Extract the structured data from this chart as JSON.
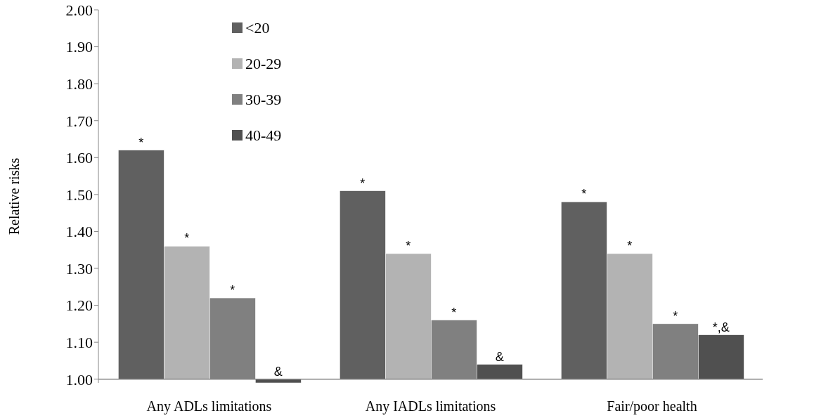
{
  "chart_data": {
    "type": "bar",
    "ylabel": "Relative risks",
    "categories": [
      "Any ADLs limitations",
      "Any IADLs limitations",
      "Fair/poor health"
    ],
    "series": [
      {
        "name": "<20",
        "color": "#606060",
        "base": [
          1.0,
          1.0,
          1.0
        ],
        "values": [
          0.62,
          0.51,
          0.48
        ],
        "value_labels": [
          "*",
          "*",
          "*"
        ]
      },
      {
        "name": "20-29",
        "color": "#b3b3b3",
        "base": [
          1.0,
          1.0,
          1.0
        ],
        "values": [
          0.36,
          0.34,
          0.34
        ],
        "value_labels": [
          "*",
          "*",
          "*"
        ]
      },
      {
        "name": "30-39",
        "color": "#808080",
        "base": [
          1.0,
          1.0,
          1.0
        ],
        "values": [
          0.22,
          0.16,
          0.15
        ],
        "value_labels": [
          "*",
          "*",
          "*"
        ]
      },
      {
        "name": "40-49",
        "color": "#505050",
        "base": [
          1.0,
          1.0,
          1.0
        ],
        "values": [
          -0.01,
          0.04,
          0.12
        ],
        "value_labels": [
          "&",
          "&",
          "*,&"
        ]
      }
    ],
    "ylim": [
      0.99,
      2.0
    ],
    "yticks": [
      {
        "value": 1.0,
        "label": "1.00"
      },
      {
        "value": 1.1,
        "label": "1.10"
      },
      {
        "value": 1.2,
        "label": "1.20"
      },
      {
        "value": 1.3,
        "label": "1.30"
      },
      {
        "value": 1.4,
        "label": "1.40"
      },
      {
        "value": 1.5,
        "label": "1.50"
      },
      {
        "value": 1.6,
        "label": "1.60"
      },
      {
        "value": 1.7,
        "label": "1.70"
      },
      {
        "value": 1.8,
        "label": "1.80"
      },
      {
        "value": 1.9,
        "label": "1.90"
      },
      {
        "value": 2.0,
        "label": "2.00"
      }
    ],
    "grid": false,
    "legend": "top left"
  }
}
